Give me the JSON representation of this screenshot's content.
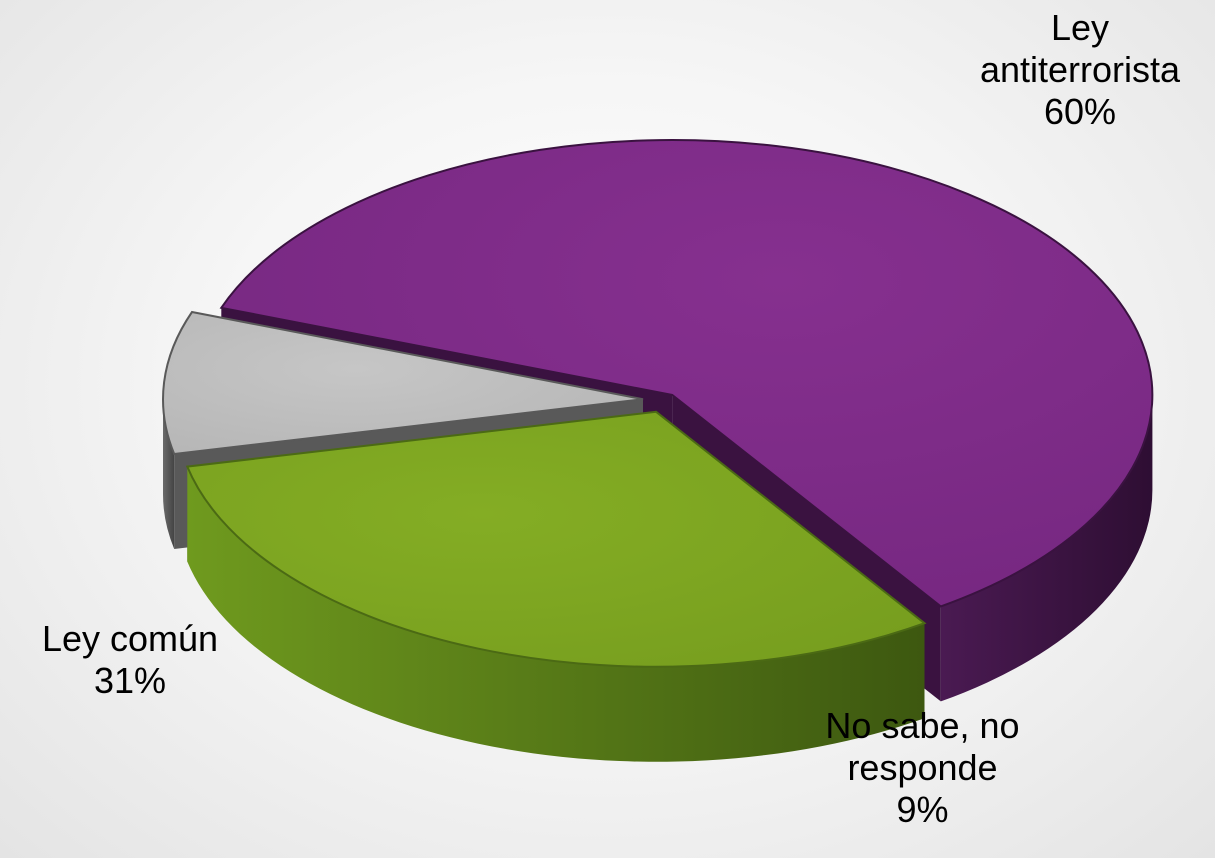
{
  "chart_data": {
    "type": "pie",
    "style": "3d-exploded",
    "slices": [
      {
        "label_lines": [
          "Ley",
          "antiterrorista"
        ],
        "pct_text": "60%",
        "value": 60,
        "color": "#7b2a85",
        "side_color": "#3a1240"
      },
      {
        "label_lines": [
          "Ley común"
        ],
        "pct_text": "31%",
        "value": 31,
        "color": "#7ca520",
        "side_color": "#4b6a14"
      },
      {
        "label_lines": [
          "No sabe, no",
          "responde"
        ],
        "pct_text": "9%",
        "value": 9,
        "color": "#bfbfbf",
        "side_color": "#595959"
      }
    ]
  }
}
